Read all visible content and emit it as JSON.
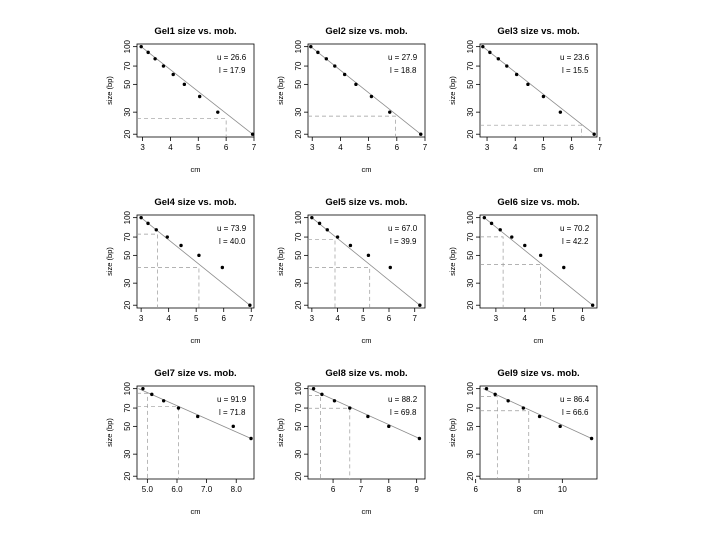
{
  "chart_data": [
    {
      "type": "scatter",
      "title": "Gel1   size vs. mob.",
      "xlabel": "cm",
      "ylabel": "size (bp)",
      "xlim": [
        2.8,
        7.0
      ],
      "ylim": [
        19,
        105
      ],
      "yscale": "log",
      "xticks": [
        3,
        4,
        5,
        6,
        7
      ],
      "yticks": [
        20,
        30,
        50,
        70,
        100
      ],
      "grid": false,
      "legend": "none",
      "x": [
        2.95,
        3.2,
        3.45,
        3.75,
        4.1,
        4.5,
        5.05,
        5.7,
        6.95
      ],
      "y": [
        100,
        90,
        80,
        70,
        60,
        50,
        40,
        30,
        20
      ],
      "fit": {
        "x": [
          2.95,
          6.95
        ],
        "y": [
          100,
          20
        ]
      },
      "u": "u = 26.6",
      "l": "l = 17.9",
      "u_value": 26.6,
      "l_value": 17.9,
      "marker_x": 6.0,
      "marker_y": 26.6
    },
    {
      "type": "scatter",
      "title": "Gel2   size vs. mob.",
      "xlabel": "cm",
      "ylabel": "size (bp)",
      "xlim": [
        2.85,
        7.0
      ],
      "ylim": [
        19,
        105
      ],
      "yscale": "log",
      "xticks": [
        3,
        4,
        5,
        6,
        7
      ],
      "yticks": [
        20,
        30,
        50,
        70,
        100
      ],
      "grid": false,
      "legend": "none",
      "x": [
        2.95,
        3.2,
        3.5,
        3.8,
        4.15,
        4.55,
        5.1,
        5.75,
        6.85
      ],
      "y": [
        100,
        90,
        80,
        70,
        60,
        50,
        40,
        30,
        20
      ],
      "fit": {
        "x": [
          2.95,
          6.85
        ],
        "y": [
          100,
          20
        ]
      },
      "u": "u = 27.9",
      "l": "l = 18.8",
      "u_value": 27.9,
      "l_value": 18.8,
      "marker_x": 5.95,
      "marker_y": 27.9
    },
    {
      "type": "scatter",
      "title": "Gel3   size vs. mob.",
      "xlabel": "cm",
      "ylabel": "size (bp)",
      "xlim": [
        2.75,
        6.9
      ],
      "ylim": [
        19,
        105
      ],
      "yscale": "log",
      "xticks": [
        3,
        4,
        5,
        6,
        7
      ],
      "yticks": [
        20,
        30,
        50,
        70,
        100
      ],
      "grid": false,
      "legend": "none",
      "x": [
        2.85,
        3.1,
        3.4,
        3.7,
        4.05,
        4.45,
        5.0,
        5.6,
        6.8
      ],
      "y": [
        100,
        90,
        80,
        70,
        60,
        50,
        40,
        30,
        20
      ],
      "fit": {
        "x": [
          2.85,
          6.8
        ],
        "y": [
          100,
          20
        ]
      },
      "u": "u = 23.6",
      "l": "l = 15.5",
      "u_value": 23.6,
      "l_value": 15.5,
      "marker_x": 6.35,
      "marker_y": 23.6
    },
    {
      "type": "scatter",
      "title": "Gel4   size vs. mob.",
      "xlabel": "cm",
      "ylabel": "size (bp)",
      "xlim": [
        2.85,
        7.1
      ],
      "ylim": [
        19,
        105
      ],
      "yscale": "log",
      "xticks": [
        3,
        4,
        5,
        6,
        7
      ],
      "yticks": [
        20,
        30,
        50,
        70,
        100
      ],
      "grid": false,
      "legend": "none",
      "x": [
        3.0,
        3.25,
        3.55,
        3.95,
        4.45,
        5.1,
        5.95,
        6.95
      ],
      "y": [
        100,
        90,
        80,
        70,
        60,
        50,
        40,
        20
      ],
      "fit": {
        "x": [
          3.0,
          6.95
        ],
        "y": [
          100,
          20
        ]
      },
      "u": "u = 73.9",
      "l": "l = 40.0",
      "u_value": 73.9,
      "l_value": 40.0,
      "marker_x_u": 3.6,
      "marker_x_l": 5.1
    },
    {
      "type": "scatter",
      "title": "Gel5   size vs. mob.",
      "xlabel": "cm",
      "ylabel": "size (bp)",
      "xlim": [
        2.85,
        7.4
      ],
      "ylim": [
        19,
        105
      ],
      "yscale": "log",
      "xticks": [
        3,
        4,
        5,
        6,
        7
      ],
      "yticks": [
        20,
        30,
        50,
        70,
        100
      ],
      "grid": false,
      "legend": "none",
      "x": [
        3.0,
        3.3,
        3.6,
        4.0,
        4.5,
        5.2,
        6.05,
        7.2
      ],
      "y": [
        100,
        90,
        80,
        70,
        60,
        50,
        40,
        20
      ],
      "fit": {
        "x": [
          3.0,
          7.2
        ],
        "y": [
          100,
          20
        ]
      },
      "u": "u = 67.0",
      "l": "l = 39.9",
      "u_value": 67.0,
      "l_value": 39.9,
      "marker_x_u": 3.9,
      "marker_x_l": 5.25
    },
    {
      "type": "scatter",
      "title": "Gel6   size vs. mob.",
      "xlabel": "cm",
      "ylabel": "size (bp)",
      "xlim": [
        2.45,
        6.5
      ],
      "ylim": [
        19,
        105
      ],
      "yscale": "log",
      "xticks": [
        3,
        4,
        5,
        6
      ],
      "yticks": [
        20,
        30,
        50,
        70,
        100
      ],
      "grid": false,
      "legend": "none",
      "x": [
        2.6,
        2.85,
        3.15,
        3.55,
        4.0,
        4.55,
        5.35,
        6.35
      ],
      "y": [
        100,
        90,
        80,
        70,
        60,
        50,
        40,
        20
      ],
      "fit": {
        "x": [
          2.6,
          6.35
        ],
        "y": [
          100,
          20
        ]
      },
      "u": "u = 70.2",
      "l": "l = 42.2",
      "u_value": 70.2,
      "l_value": 42.2,
      "marker_x_u": 3.25,
      "marker_x_l": 4.55
    },
    {
      "type": "scatter",
      "title": "Gel7   size vs. mob.",
      "xlabel": "cm",
      "ylabel": "size (bp)",
      "xlim": [
        4.65,
        8.6
      ],
      "ylim": [
        19,
        105
      ],
      "yscale": "log",
      "xticks": [
        5.0,
        6.0,
        7.0,
        8.0
      ],
      "yticks": [
        20,
        30,
        50,
        70,
        100
      ],
      "grid": false,
      "legend": "none",
      "x": [
        4.85,
        5.15,
        5.55,
        6.05,
        6.7,
        7.9,
        8.5
      ],
      "y": [
        100,
        90,
        80,
        70,
        60,
        50,
        40
      ],
      "fit": {
        "x": [
          4.7,
          8.5
        ],
        "y": [
          100,
          40
        ]
      },
      "u": "u = 91.9",
      "l": "l = 71.8",
      "u_value": 91.9,
      "l_value": 71.8,
      "marker_x_u": 5.0,
      "marker_x_l": 6.05
    },
    {
      "type": "scatter",
      "title": "Gel8   size vs. mob.",
      "xlabel": "cm",
      "ylabel": "size (bp)",
      "xlim": [
        5.1,
        9.3
      ],
      "ylim": [
        19,
        105
      ],
      "yscale": "log",
      "xticks": [
        6,
        7,
        8,
        9
      ],
      "yticks": [
        20,
        30,
        50,
        70,
        100
      ],
      "grid": false,
      "legend": "none",
      "x": [
        5.3,
        5.6,
        6.05,
        6.6,
        7.25,
        8.0,
        9.1
      ],
      "y": [
        100,
        90,
        80,
        70,
        60,
        50,
        40
      ],
      "fit": {
        "x": [
          5.15,
          9.1
        ],
        "y": [
          100,
          40
        ]
      },
      "u": "u = 88.2",
      "l": "l = 69.8",
      "u_value": 88.2,
      "l_value": 69.8,
      "marker_x_u": 5.55,
      "marker_x_l": 6.6
    },
    {
      "type": "scatter",
      "title": "Gel9   size vs. mob.",
      "xlabel": "cm",
      "ylabel": "size (bp)",
      "xlim": [
        6.2,
        11.6
      ],
      "ylim": [
        19,
        105
      ],
      "yscale": "log",
      "xticks": [
        6,
        8,
        10
      ],
      "yticks": [
        20,
        30,
        50,
        70,
        100
      ],
      "grid": false,
      "legend": "none",
      "x": [
        6.5,
        6.9,
        7.5,
        8.2,
        8.95,
        9.9,
        11.35
      ],
      "y": [
        100,
        90,
        80,
        70,
        60,
        50,
        40
      ],
      "fit": {
        "x": [
          6.35,
          11.35
        ],
        "y": [
          100,
          40
        ]
      },
      "u": "u = 86.4",
      "l": "l = 66.6",
      "u_value": 86.4,
      "l_value": 66.6,
      "marker_x_u": 7.0,
      "marker_x_l": 8.45
    }
  ]
}
